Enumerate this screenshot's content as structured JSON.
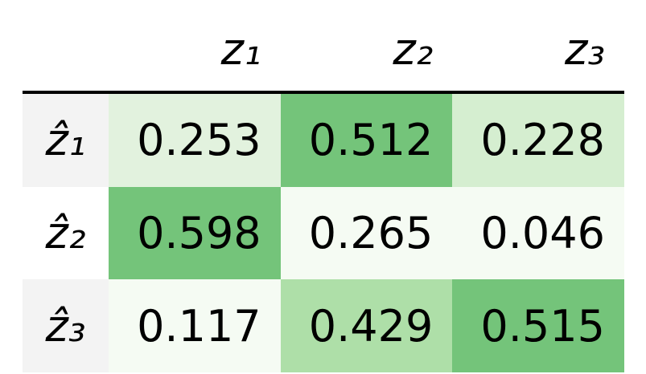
{
  "table": {
    "columns": [
      "z₁",
      "z₂",
      "z₃"
    ],
    "rows": [
      {
        "label": "ẑ₁",
        "label_color": "#f3f3f3",
        "cells": [
          "0.253",
          "0.512",
          "0.228"
        ],
        "colors": [
          "#e2f2de",
          "#74c47a",
          "#d5eed0"
        ]
      },
      {
        "label": "ẑ₂",
        "label_color": "#ffffff",
        "cells": [
          "0.598",
          "0.265",
          "0.046"
        ],
        "colors": [
          "#74c47a",
          "#f5fbf3",
          "#f5fbf3"
        ]
      },
      {
        "label": "ẑ₃",
        "label_color": "#f3f3f3",
        "cells": [
          "0.117",
          "0.429",
          "0.515"
        ],
        "colors": [
          "#f5fbf3",
          "#aedfa8",
          "#74c47a"
        ]
      }
    ]
  }
}
